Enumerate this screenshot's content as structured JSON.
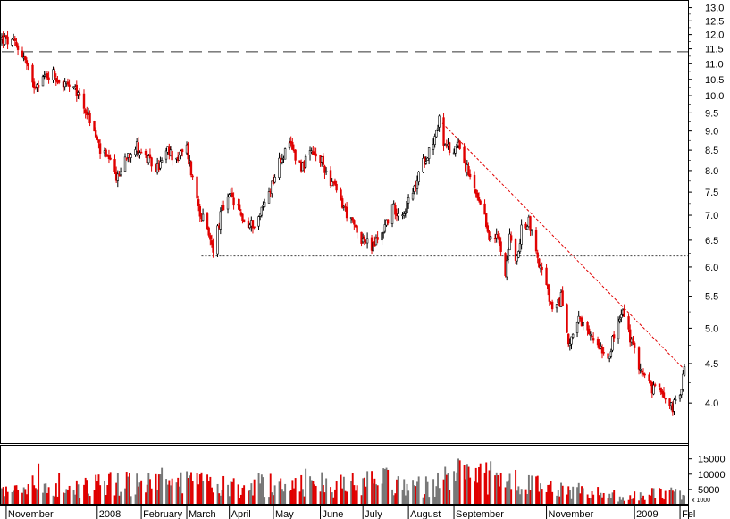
{
  "chart_data": {
    "type": "candlestick",
    "title": "",
    "price_axis": {
      "ticks": [
        "13.0",
        "12.5",
        "12.0",
        "11.5",
        "11.0",
        "10.5",
        "10.0",
        "9.5",
        "9.0",
        "8.5",
        "8.0",
        "7.5",
        "7.0",
        "6.5",
        "6.0",
        "5.5",
        "5.0",
        "4.5",
        "4.0"
      ],
      "scale": "log",
      "range": [
        3.55,
        13.3
      ]
    },
    "volume_axis": {
      "ticks": [
        "15000",
        "10000",
        "5000"
      ],
      "unit_label": "x 1000",
      "range": [
        0,
        19000
      ]
    },
    "x_axis_labels": [
      "November",
      "2008",
      "February",
      "March",
      "April",
      "May",
      "June",
      "July",
      "August",
      "September",
      "November",
      "2009",
      "Fel"
    ],
    "reference_lines": [
      {
        "style": "dashed",
        "value": 11.4,
        "from": "2007-10-29",
        "to": "2009-02-05"
      },
      {
        "style": "dotted",
        "value": 6.2,
        "from": "2008-03-13",
        "to": "2009-02-05"
      }
    ],
    "trend_line": {
      "from": {
        "date": "2008-08-22",
        "value": 9.3
      },
      "to": {
        "date": "2009-02-05",
        "value": 4.42
      }
    },
    "price_path": [
      [
        "2007-10-29",
        11.85
      ],
      [
        "2007-11-07",
        11.65
      ],
      [
        "2007-11-13",
        11.25
      ],
      [
        "2007-11-19",
        10.3
      ],
      [
        "2007-11-26",
        10.55
      ],
      [
        "2007-12-03",
        10.7
      ],
      [
        "2007-12-07",
        10.45
      ],
      [
        "2007-12-14",
        10.25
      ],
      [
        "2007-12-21",
        10.0
      ],
      [
        "2007-12-28",
        9.3
      ],
      [
        "2008-01-04",
        8.5
      ],
      [
        "2008-01-10",
        8.2
      ],
      [
        "2008-01-16",
        7.8
      ],
      [
        "2008-01-22",
        8.4
      ],
      [
        "2008-01-29",
        8.6
      ],
      [
        "2008-02-05",
        8.25
      ],
      [
        "2008-02-12",
        8.05
      ],
      [
        "2008-02-19",
        8.45
      ],
      [
        "2008-02-26",
        8.3
      ],
      [
        "2008-03-03",
        8.55
      ],
      [
        "2008-03-07",
        7.8
      ],
      [
        "2008-03-12",
        7.1
      ],
      [
        "2008-03-18",
        6.55
      ],
      [
        "2008-03-21",
        6.35
      ],
      [
        "2008-03-27",
        7.1
      ],
      [
        "2008-04-02",
        7.4
      ],
      [
        "2008-04-08",
        7.05
      ],
      [
        "2008-04-14",
        6.75
      ],
      [
        "2008-04-21",
        6.95
      ],
      [
        "2008-04-29",
        7.6
      ],
      [
        "2008-05-06",
        8.3
      ],
      [
        "2008-05-13",
        8.6
      ],
      [
        "2008-05-20",
        8.1
      ],
      [
        "2008-05-27",
        8.4
      ],
      [
        "2008-06-03",
        8.2
      ],
      [
        "2008-06-10",
        7.7
      ],
      [
        "2008-06-16",
        7.3
      ],
      [
        "2008-06-23",
        6.85
      ],
      [
        "2008-06-30",
        6.55
      ],
      [
        "2008-07-07",
        6.35
      ],
      [
        "2008-07-14",
        6.65
      ],
      [
        "2008-07-21",
        7.15
      ],
      [
        "2008-07-28",
        7.05
      ],
      [
        "2008-08-04",
        7.45
      ],
      [
        "2008-08-11",
        8.2
      ],
      [
        "2008-08-18",
        8.75
      ],
      [
        "2008-08-22",
        9.3
      ],
      [
        "2008-08-26",
        8.55
      ],
      [
        "2008-09-01",
        8.45
      ],
      [
        "2008-09-04",
        8.8
      ],
      [
        "2008-09-08",
        8.2
      ],
      [
        "2008-09-15",
        7.5
      ],
      [
        "2008-09-22",
        6.9
      ],
      [
        "2008-09-26",
        6.5
      ],
      [
        "2008-10-01",
        6.55
      ],
      [
        "2008-10-06",
        5.95
      ],
      [
        "2008-10-09",
        6.55
      ],
      [
        "2008-10-14",
        6.1
      ],
      [
        "2008-10-17",
        6.7
      ],
      [
        "2008-10-22",
        6.9
      ],
      [
        "2008-10-28",
        6.15
      ],
      [
        "2008-11-03",
        5.65
      ],
      [
        "2008-11-08",
        5.15
      ],
      [
        "2008-11-13",
        5.5
      ],
      [
        "2008-11-18",
        4.8
      ],
      [
        "2008-11-25",
        5.1
      ],
      [
        "2008-12-01",
        4.9
      ],
      [
        "2008-12-08",
        4.8
      ],
      [
        "2008-12-15",
        4.6
      ],
      [
        "2008-12-20",
        4.95
      ],
      [
        "2008-12-25",
        5.25
      ],
      [
        "2009-01-01",
        4.7
      ],
      [
        "2009-01-08",
        4.35
      ],
      [
        "2009-01-15",
        4.15
      ],
      [
        "2009-01-20",
        4.2
      ],
      [
        "2009-01-27",
        3.95
      ],
      [
        "2009-02-02",
        4.05
      ],
      [
        "2009-02-05",
        4.45
      ]
    ],
    "volume_levels": [
      [
        "2007-10-29",
        4500
      ],
      [
        "2007-11-19",
        6000
      ],
      [
        "2007-12-14",
        5500
      ],
      [
        "2008-01-10",
        8000
      ],
      [
        "2008-01-29",
        7500
      ],
      [
        "2008-02-26",
        8000
      ],
      [
        "2008-03-21",
        6000
      ],
      [
        "2008-04-21",
        7000
      ],
      [
        "2008-05-20",
        7500
      ],
      [
        "2008-06-16",
        6500
      ],
      [
        "2008-07-14",
        8000
      ],
      [
        "2008-08-11",
        6000
      ],
      [
        "2008-09-04",
        9500
      ],
      [
        "2008-09-26",
        9000
      ],
      [
        "2008-10-17",
        7000
      ],
      [
        "2008-11-13",
        5000
      ],
      [
        "2008-12-08",
        4000
      ],
      [
        "2008-12-25",
        2500
      ],
      [
        "2009-01-15",
        3500
      ],
      [
        "2009-02-05",
        4500
      ]
    ],
    "up_color": "#000000",
    "down_color": "#e00000",
    "volume_up_color": "#777777",
    "volume_down_color": "#e00000"
  }
}
